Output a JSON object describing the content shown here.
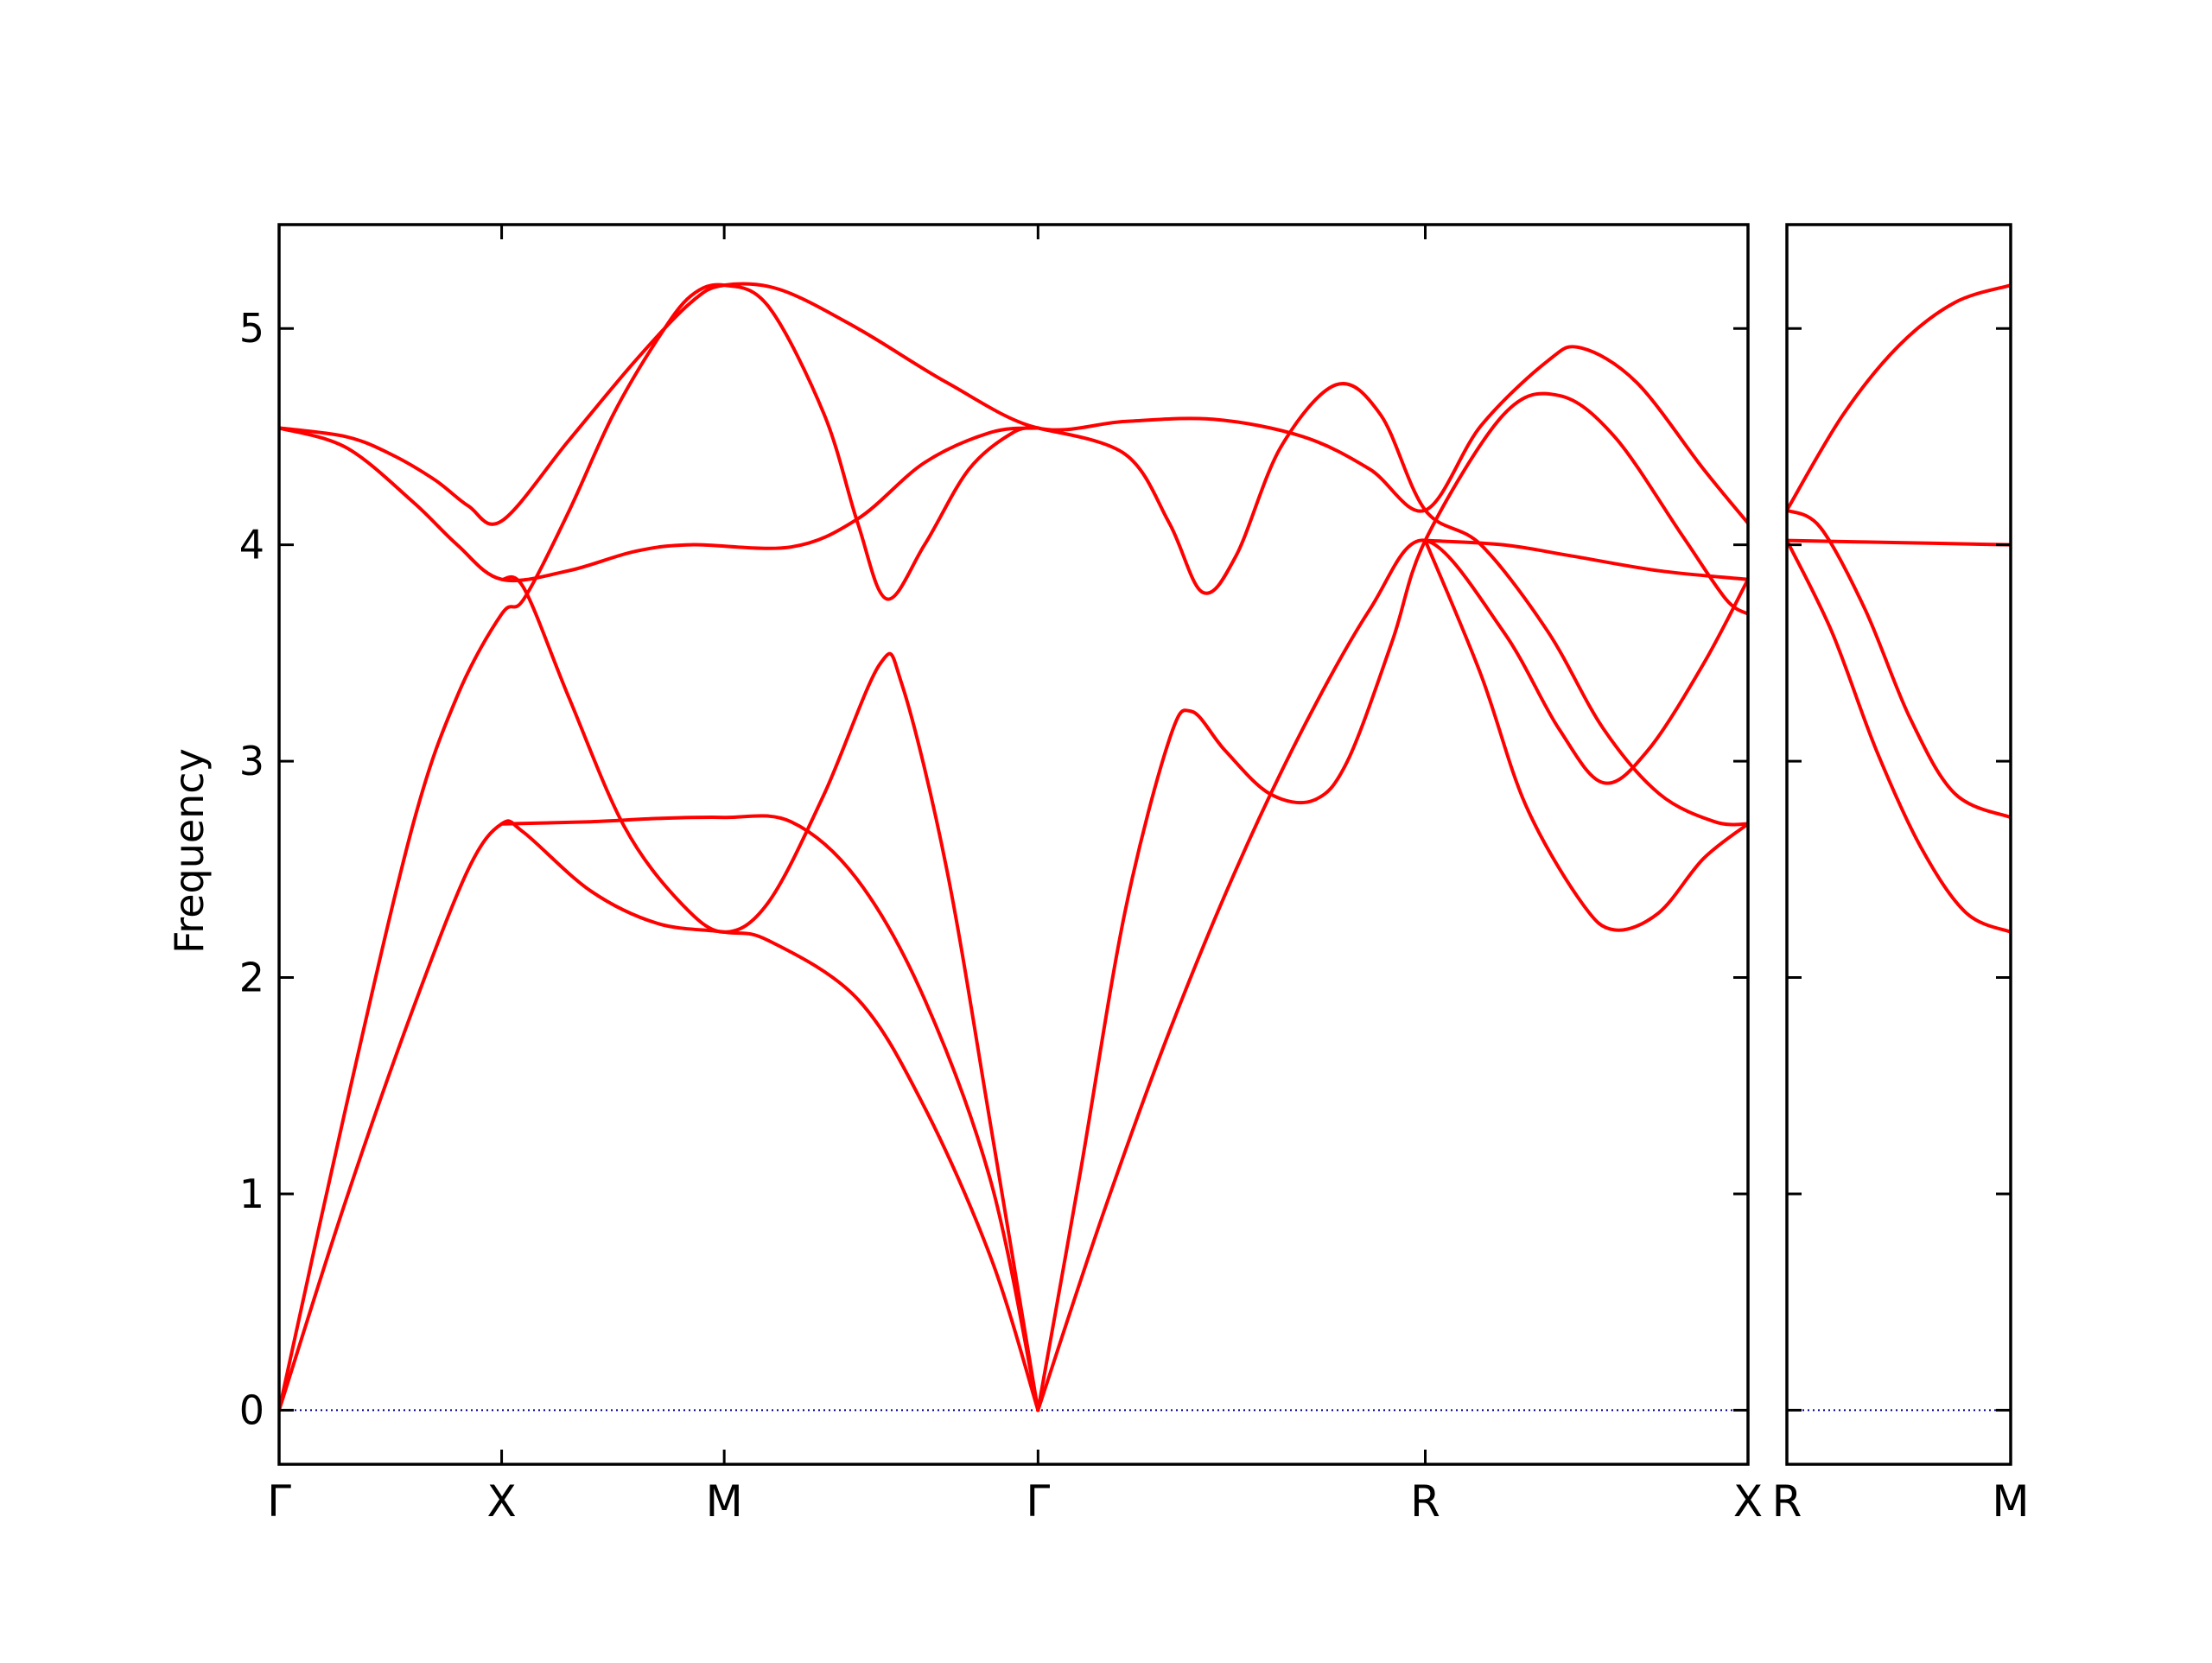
{
  "chart_data": {
    "type": "line",
    "title": "",
    "ylabel": "Frequency",
    "xlabel": "",
    "ylim": [
      -0.25,
      5.48
    ],
    "yticks": [
      0,
      1,
      2,
      3,
      4,
      5
    ],
    "ytick_labels": [
      "0",
      "1",
      "2",
      "3",
      "4",
      "5"
    ],
    "line_color": "#ff0000",
    "zero_line_color": "#00008b",
    "grid": false,
    "panels": [
      {
        "name": "main-panel",
        "xlim": [
          0,
          6.6
        ],
        "xticks": [
          0,
          1,
          2,
          3.41,
          5.15,
          6.6
        ],
        "xtick_labels": [
          "Γ",
          "X",
          "M",
          "Γ",
          "R",
          "X"
        ],
        "series": [
          {
            "points": [
              [
                0,
                4.54
              ],
              [
                0.3,
                4.5
              ],
              [
                0.5,
                4.42
              ],
              [
                0.7,
                4.3
              ],
              [
                0.85,
                4.18
              ],
              [
                1,
                4.11
              ],
              [
                1.3,
                4.48
              ],
              [
                1.6,
                4.85
              ],
              [
                1.85,
                5.12
              ],
              [
                2,
                5.2
              ],
              [
                2.25,
                5.18
              ],
              [
                2.6,
                5.0
              ],
              [
                3.0,
                4.75
              ],
              [
                3.41,
                4.54
              ],
              [
                3.8,
                4.57
              ],
              [
                4.2,
                4.58
              ],
              [
                4.6,
                4.5
              ],
              [
                4.9,
                4.35
              ],
              [
                5.15,
                4.16
              ],
              [
                5.4,
                4.55
              ],
              [
                5.7,
                4.85
              ],
              [
                5.85,
                4.91
              ],
              [
                6.1,
                4.75
              ],
              [
                6.4,
                4.35
              ],
              [
                6.6,
                4.1
              ]
            ]
          },
          {
            "points": [
              [
                0,
                4.54
              ],
              [
                0.3,
                4.45
              ],
              [
                0.6,
                4.2
              ],
              [
                0.8,
                4.0
              ],
              [
                1,
                3.84
              ],
              [
                1.3,
                3.88
              ],
              [
                1.6,
                3.97
              ],
              [
                1.85,
                4.0
              ],
              [
                2.3,
                3.99
              ],
              [
                2.6,
                4.12
              ],
              [
                2.9,
                4.38
              ],
              [
                3.2,
                4.52
              ],
              [
                3.41,
                4.54
              ]
            ]
          },
          {
            "points": [
              [
                0,
                0
              ],
              [
                0.3,
                1.4
              ],
              [
                0.6,
                2.7
              ],
              [
                0.8,
                3.3
              ],
              [
                1,
                3.68
              ],
              [
                1.1,
                3.75
              ],
              [
                1.3,
                4.15
              ],
              [
                1.5,
                4.6
              ],
              [
                1.7,
                4.95
              ],
              [
                1.85,
                5.15
              ],
              [
                2,
                5.2
              ],
              [
                2.2,
                5.1
              ],
              [
                2.45,
                4.6
              ],
              [
                2.6,
                4.1
              ],
              [
                2.73,
                3.75
              ],
              [
                2.9,
                4.0
              ],
              [
                3.1,
                4.35
              ],
              [
                3.3,
                4.52
              ],
              [
                3.41,
                4.54
              ]
            ]
          },
          {
            "points": [
              [
                0,
                0
              ],
              [
                0.3,
                0.97
              ],
              [
                0.6,
                1.85
              ],
              [
                0.85,
                2.5
              ],
              [
                1,
                2.71
              ],
              [
                1.1,
                2.67
              ],
              [
                1.4,
                2.4
              ],
              [
                1.7,
                2.25
              ],
              [
                2,
                2.21
              ],
              [
                2.2,
                2.17
              ],
              [
                2.6,
                1.9
              ],
              [
                2.9,
                1.4
              ],
              [
                3.2,
                0.7
              ],
              [
                3.41,
                0
              ]
            ]
          },
          {
            "points": [
              [
                1,
                2.71
              ],
              [
                1.4,
                2.72
              ],
              [
                1.7,
                2.735
              ],
              [
                2,
                2.74
              ],
              [
                2.3,
                2.72
              ],
              [
                2.6,
                2.45
              ],
              [
                2.9,
                1.9
              ],
              [
                3.2,
                1.05
              ],
              [
                3.41,
                0
              ]
            ]
          },
          {
            "points": [
              [
                1,
                3.84
              ],
              [
                1.1,
                3.8
              ],
              [
                1.3,
                3.3
              ],
              [
                1.55,
                2.7
              ],
              [
                1.8,
                2.35
              ],
              [
                2,
                2.21
              ],
              [
                2.2,
                2.35
              ],
              [
                2.45,
                2.85
              ],
              [
                2.7,
                3.45
              ],
              [
                2.8,
                3.35
              ],
              [
                3.0,
                2.5
              ],
              [
                3.2,
                1.3
              ],
              [
                3.41,
                0
              ]
            ]
          },
          {
            "points": [
              [
                3.41,
                0
              ],
              [
                3.6,
                1.1
              ],
              [
                3.8,
                2.3
              ],
              [
                4.0,
                3.1
              ],
              [
                4.1,
                3.23
              ],
              [
                4.25,
                3.05
              ],
              [
                4.45,
                2.85
              ],
              [
                4.65,
                2.82
              ],
              [
                4.8,
                3.0
              ],
              [
                5.0,
                3.55
              ],
              [
                5.15,
                4.02
              ],
              [
                5.5,
                4.6
              ],
              [
                5.75,
                4.69
              ],
              [
                6.0,
                4.5
              ],
              [
                6.3,
                4.05
              ],
              [
                6.5,
                3.75
              ],
              [
                6.6,
                3.68
              ]
            ]
          },
          {
            "points": [
              [
                3.41,
                0
              ],
              [
                3.7,
                0.9
              ],
              [
                4.0,
                1.75
              ],
              [
                4.3,
                2.5
              ],
              [
                4.6,
                3.15
              ],
              [
                4.9,
                3.7
              ],
              [
                5.15,
                4.02
              ],
              [
                5.5,
                3.6
              ],
              [
                5.75,
                3.15
              ],
              [
                5.95,
                2.9
              ],
              [
                6.15,
                3.05
              ],
              [
                6.4,
                3.45
              ],
              [
                6.6,
                3.84
              ]
            ]
          },
          {
            "points": [
              [
                3.41,
                4.54
              ],
              [
                3.8,
                4.42
              ],
              [
                4.0,
                4.1
              ],
              [
                4.15,
                3.78
              ],
              [
                4.3,
                3.95
              ],
              [
                4.5,
                4.45
              ],
              [
                4.75,
                4.74
              ],
              [
                4.95,
                4.6
              ],
              [
                5.15,
                4.16
              ],
              [
                5.4,
                4.0
              ],
              [
                5.7,
                3.6
              ],
              [
                5.95,
                3.15
              ],
              [
                6.2,
                2.85
              ],
              [
                6.45,
                2.72
              ],
              [
                6.6,
                2.71
              ]
            ]
          },
          {
            "points": [
              [
                5.15,
                4.02
              ],
              [
                5.5,
                4.0
              ],
              [
                5.8,
                3.95
              ],
              [
                6.2,
                3.88
              ],
              [
                6.6,
                3.84
              ]
            ]
          },
          {
            "points": [
              [
                5.15,
                4.02
              ],
              [
                5.4,
                3.4
              ],
              [
                5.6,
                2.8
              ],
              [
                5.85,
                2.35
              ],
              [
                6.0,
                2.22
              ],
              [
                6.2,
                2.3
              ],
              [
                6.4,
                2.55
              ],
              [
                6.6,
                2.71
              ]
            ]
          }
        ]
      },
      {
        "name": "side-panel",
        "xlim": [
          0,
          1
        ],
        "xticks": [
          0,
          1
        ],
        "xtick_labels": [
          "R",
          "M"
        ],
        "series": [
          {
            "points": [
              [
                0,
                4.16
              ],
              [
                0.25,
                4.6
              ],
              [
                0.5,
                4.92
              ],
              [
                0.75,
                5.12
              ],
              [
                1,
                5.2
              ]
            ]
          },
          {
            "points": [
              [
                0,
                4.02
              ],
              [
                0.5,
                4.01
              ],
              [
                1,
                4.0
              ]
            ]
          },
          {
            "points": [
              [
                0,
                4.16
              ],
              [
                0.15,
                4.08
              ],
              [
                0.35,
                3.7
              ],
              [
                0.55,
                3.2
              ],
              [
                0.75,
                2.85
              ],
              [
                1,
                2.74
              ]
            ]
          },
          {
            "points": [
              [
                0,
                4.02
              ],
              [
                0.2,
                3.6
              ],
              [
                0.4,
                3.05
              ],
              [
                0.6,
                2.6
              ],
              [
                0.8,
                2.3
              ],
              [
                1,
                2.21
              ]
            ]
          }
        ]
      }
    ]
  }
}
